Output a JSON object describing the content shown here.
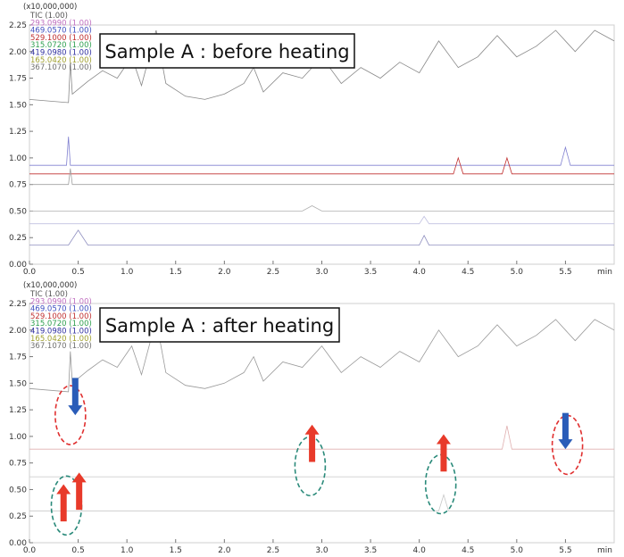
{
  "chart_data": [
    {
      "type": "line",
      "scale_label": "(x10,000,000)",
      "title_box": "Sample A : before heating",
      "x_unit": "min",
      "xlim": [
        0.0,
        6.0
      ],
      "ylim": [
        0.0,
        2.25
      ],
      "xticks": [
        "0.0",
        "0.5",
        "1.0",
        "1.5",
        "2.0",
        "2.5",
        "3.0",
        "3.5",
        "4.0",
        "4.5",
        "5.0",
        "5.5"
      ],
      "yticks": [
        "0.00",
        "0.25",
        "0.50",
        "0.75",
        "1.00",
        "1.25",
        "1.50",
        "1.75",
        "2.00",
        "2.25"
      ],
      "legend": [
        {
          "label": "TIC (1.00)",
          "color": "#555555"
        },
        {
          "label": "293.0990 (1.00)",
          "color": "#c070c0"
        },
        {
          "label": "469.0570 (1.00)",
          "color": "#4050c0"
        },
        {
          "label": "529.1000 (1.00)",
          "color": "#c03030"
        },
        {
          "label": "315.0720 (1.00)",
          "color": "#30a050"
        },
        {
          "label": "419.0980 (1.00)",
          "color": "#3030a0"
        },
        {
          "label": "165.0420 (1.00)",
          "color": "#a0a030"
        },
        {
          "label": "367.1070 (1.00)",
          "color": "#707070"
        }
      ],
      "series": [
        {
          "color": "#888888",
          "points": [
            [
              0.0,
              1.55
            ],
            [
              0.4,
              1.52
            ],
            [
              0.42,
              1.9
            ],
            [
              0.44,
              1.6
            ],
            [
              0.6,
              1.72
            ],
            [
              0.75,
              1.82
            ],
            [
              0.9,
              1.75
            ],
            [
              1.05,
              1.95
            ],
            [
              1.15,
              1.68
            ],
            [
              1.3,
              2.2
            ],
            [
              1.4,
              1.7
            ],
            [
              1.6,
              1.58
            ],
            [
              1.8,
              1.55
            ],
            [
              2.0,
              1.6
            ],
            [
              2.2,
              1.7
            ],
            [
              2.3,
              1.85
            ],
            [
              2.4,
              1.62
            ],
            [
              2.6,
              1.8
            ],
            [
              2.8,
              1.75
            ],
            [
              3.0,
              1.95
            ],
            [
              3.2,
              1.7
            ],
            [
              3.4,
              1.85
            ],
            [
              3.6,
              1.75
            ],
            [
              3.8,
              1.9
            ],
            [
              4.0,
              1.8
            ],
            [
              4.2,
              2.1
            ],
            [
              4.4,
              1.85
            ],
            [
              4.6,
              1.95
            ],
            [
              4.8,
              2.15
            ],
            [
              5.0,
              1.95
            ],
            [
              5.2,
              2.05
            ],
            [
              5.4,
              2.2
            ],
            [
              5.6,
              2.0
            ],
            [
              5.8,
              2.2
            ],
            [
              6.0,
              2.1
            ]
          ]
        },
        {
          "color": "#8080d0",
          "points": [
            [
              0.0,
              0.93
            ],
            [
              0.38,
              0.93
            ],
            [
              0.4,
              1.2
            ],
            [
              0.42,
              0.93
            ],
            [
              5.45,
              0.93
            ],
            [
              5.5,
              1.1
            ],
            [
              5.55,
              0.93
            ],
            [
              6.0,
              0.93
            ]
          ]
        },
        {
          "color": "#c03030",
          "points": [
            [
              0.0,
              0.85
            ],
            [
              4.35,
              0.85
            ],
            [
              4.4,
              1.0
            ],
            [
              4.45,
              0.85
            ],
            [
              4.85,
              0.85
            ],
            [
              4.9,
              1.0
            ],
            [
              4.95,
              0.85
            ],
            [
              6.0,
              0.85
            ]
          ]
        },
        {
          "color": "#a0a0a0",
          "points": [
            [
              0.0,
              0.75
            ],
            [
              0.4,
              0.75
            ],
            [
              0.42,
              0.9
            ],
            [
              0.44,
              0.75
            ],
            [
              6.0,
              0.75
            ]
          ]
        },
        {
          "color": "#b0b0b0",
          "points": [
            [
              0.0,
              0.5
            ],
            [
              2.8,
              0.5
            ],
            [
              2.9,
              0.55
            ],
            [
              3.0,
              0.5
            ],
            [
              6.0,
              0.5
            ]
          ]
        },
        {
          "color": "#c0c0e0",
          "points": [
            [
              0.0,
              0.38
            ],
            [
              4.0,
              0.38
            ],
            [
              4.05,
              0.45
            ],
            [
              4.1,
              0.38
            ],
            [
              6.0,
              0.38
            ]
          ]
        },
        {
          "color": "#9090c0",
          "points": [
            [
              0.0,
              0.18
            ],
            [
              0.4,
              0.18
            ],
            [
              0.5,
              0.32
            ],
            [
              0.6,
              0.18
            ],
            [
              4.0,
              0.18
            ],
            [
              4.05,
              0.27
            ],
            [
              4.1,
              0.18
            ],
            [
              6.0,
              0.18
            ]
          ]
        }
      ]
    },
    {
      "type": "line",
      "scale_label": "(x10,000,000)",
      "title_box": "Sample A : after heating",
      "x_unit": "min",
      "xlim": [
        0.0,
        6.0
      ],
      "ylim": [
        0.0,
        2.25
      ],
      "xticks": [
        "0.0",
        "0.5",
        "1.0",
        "1.5",
        "2.0",
        "2.5",
        "3.0",
        "3.5",
        "4.0",
        "4.5",
        "5.0",
        "5.5"
      ],
      "yticks": [
        "0.00",
        "0.25",
        "0.50",
        "0.75",
        "1.00",
        "1.25",
        "1.50",
        "1.75",
        "2.00",
        "2.25"
      ],
      "legend": [
        {
          "label": "TIC (1.00)",
          "color": "#555555"
        },
        {
          "label": "293.0990 (1.00)",
          "color": "#c070c0"
        },
        {
          "label": "469.0570 (1.00)",
          "color": "#4050c0"
        },
        {
          "label": "529.1000 (1.00)",
          "color": "#c03030"
        },
        {
          "label": "315.0720 (1.00)",
          "color": "#30a050"
        },
        {
          "label": "419.0980 (1.00)",
          "color": "#3030a0"
        },
        {
          "label": "165.0420 (1.00)",
          "color": "#a0a030"
        },
        {
          "label": "367.1070 (1.00)",
          "color": "#707070"
        }
      ],
      "series": [
        {
          "color": "#999999",
          "points": [
            [
              0.0,
              1.45
            ],
            [
              0.4,
              1.42
            ],
            [
              0.42,
              1.8
            ],
            [
              0.44,
              1.5
            ],
            [
              0.6,
              1.62
            ],
            [
              0.75,
              1.72
            ],
            [
              0.9,
              1.65
            ],
            [
              1.05,
              1.85
            ],
            [
              1.15,
              1.58
            ],
            [
              1.3,
              2.1
            ],
            [
              1.4,
              1.6
            ],
            [
              1.6,
              1.48
            ],
            [
              1.8,
              1.45
            ],
            [
              2.0,
              1.5
            ],
            [
              2.2,
              1.6
            ],
            [
              2.3,
              1.75
            ],
            [
              2.4,
              1.52
            ],
            [
              2.6,
              1.7
            ],
            [
              2.8,
              1.65
            ],
            [
              3.0,
              1.85
            ],
            [
              3.2,
              1.6
            ],
            [
              3.4,
              1.75
            ],
            [
              3.6,
              1.65
            ],
            [
              3.8,
              1.8
            ],
            [
              4.0,
              1.7
            ],
            [
              4.2,
              2.0
            ],
            [
              4.4,
              1.75
            ],
            [
              4.6,
              1.85
            ],
            [
              4.8,
              2.05
            ],
            [
              5.0,
              1.85
            ],
            [
              5.2,
              1.95
            ],
            [
              5.4,
              2.1
            ],
            [
              5.6,
              1.9
            ],
            [
              5.8,
              2.1
            ],
            [
              6.0,
              2.0
            ]
          ]
        },
        {
          "color": "#e0b0b0",
          "points": [
            [
              0.0,
              0.88
            ],
            [
              4.85,
              0.88
            ],
            [
              4.9,
              1.1
            ],
            [
              4.95,
              0.88
            ],
            [
              6.0,
              0.88
            ]
          ]
        },
        {
          "color": "#d0d0d0",
          "points": [
            [
              0.0,
              0.62
            ],
            [
              6.0,
              0.62
            ]
          ]
        },
        {
          "color": "#c8c8c8",
          "points": [
            [
              0.0,
              0.3
            ],
            [
              4.2,
              0.3
            ],
            [
              4.25,
              0.45
            ],
            [
              4.3,
              0.3
            ],
            [
              6.0,
              0.3
            ]
          ]
        }
      ],
      "annotations": {
        "circles": [
          {
            "x": 0.42,
            "y": 1.2,
            "color": "#e03030"
          },
          {
            "x": 0.38,
            "y": 0.35,
            "color": "#2a8a7a"
          },
          {
            "x": 2.88,
            "y": 0.72,
            "color": "#2a8a7a"
          },
          {
            "x": 4.22,
            "y": 0.55,
            "color": "#2a8a7a"
          },
          {
            "x": 5.52,
            "y": 0.92,
            "color": "#e03030"
          }
        ],
        "arrows_down": [
          {
            "x": 0.47,
            "y_top": 1.55,
            "y_bottom": 1.2,
            "color": "#2a5cb8"
          },
          {
            "x": 5.5,
            "y_top": 1.22,
            "y_bottom": 0.88,
            "color": "#2a5cb8"
          }
        ],
        "arrows_up": [
          {
            "x": 0.35,
            "y_top": 0.55,
            "y_bottom": 0.2,
            "color": "#e83a2a"
          },
          {
            "x": 0.51,
            "y_top": 0.66,
            "y_bottom": 0.31,
            "color": "#e83a2a"
          },
          {
            "x": 2.9,
            "y_top": 1.11,
            "y_bottom": 0.76,
            "color": "#e83a2a"
          },
          {
            "x": 4.25,
            "y_top": 1.02,
            "y_bottom": 0.67,
            "color": "#e83a2a"
          }
        ]
      }
    }
  ]
}
